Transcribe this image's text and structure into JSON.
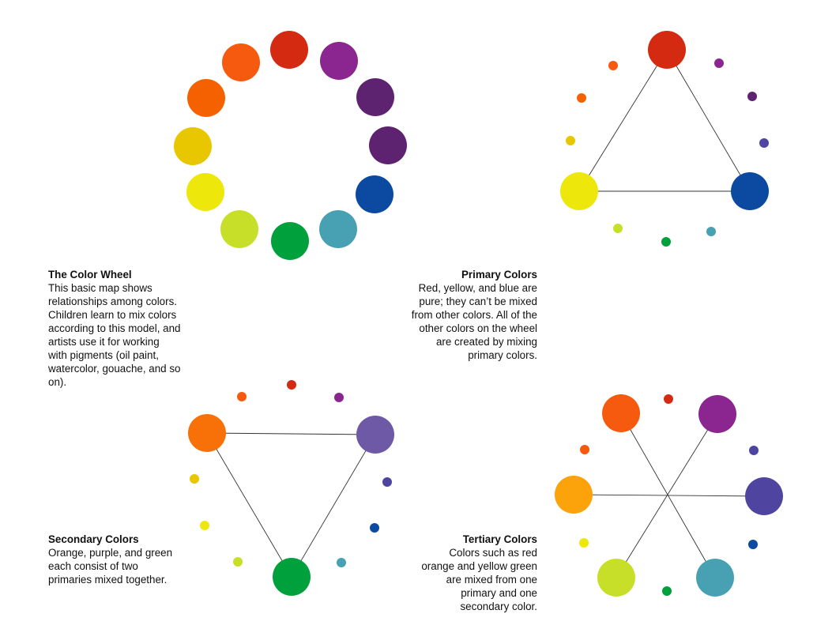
{
  "colors": {
    "red": "#d42a11",
    "red_purple": "#8b2590",
    "purple": "#5d2370",
    "blue_purple": "#4f45a0",
    "blue": "#0b4aa0",
    "blue_green": "#47a1b3",
    "green": "#00a03c",
    "yellow_green": "#c8df2a",
    "yellow": "#ede70c",
    "yellow_orange": "#e8c600",
    "orange": "#f66100",
    "red_orange": "#f55a0e",
    "secondary_orange": "#f77008",
    "secondary_purple": "#6e59a6",
    "tertiary_yellow_orange": "#fca20a",
    "line": "#333333"
  },
  "captions": {
    "wheel": {
      "title": "The Color Wheel",
      "body": "This basic map shows relationships among colors. Children learn to mix colors according to this model, and artists use it for working with pigments (oil paint, watercolor, gouache, and so on)."
    },
    "primary": {
      "title": "Primary Colors",
      "body": "Red, yellow, and blue are pure; they can’t be mixed from other colors. All of the other colors on the wheel are created by mixing primary colors."
    },
    "secondary": {
      "title": "Secondary Colors",
      "body": "Orange, purple, and green each consist of two primaries mixed together."
    },
    "tertiary": {
      "title": "Tertiary Colors",
      "body": "Colors such as red orange and yellow green are mixed from one primary and one secondary color."
    }
  }
}
